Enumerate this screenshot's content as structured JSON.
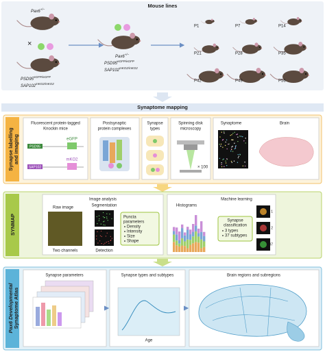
{
  "mouse_lines": {
    "title": "Mouse lines",
    "pax6": {
      "base": "Pax6",
      "sup": "+/−"
    },
    "cross": "×",
    "psd95": {
      "base": "PSD95",
      "sup": "eGFP/eGFP"
    },
    "sap102": {
      "base": "SAP102",
      "sup": "mKO2/mKO2"
    },
    "ages": [
      "P1",
      "P7",
      "P14",
      "P21",
      "P28",
      "P35",
      "P42",
      "P49",
      "P56"
    ]
  },
  "synaptome_mapping": {
    "title": "Synaptome mapping",
    "imaging": {
      "label": [
        "Synapse labelling",
        "and imaging"
      ],
      "knockin": [
        "Fluorescent protein-tagged",
        "Knockin mice"
      ],
      "psd95": "PSD95",
      "egfp": "eGFP",
      "sap102": "SAP102",
      "mko2": "mKO2",
      "complexes": [
        "Postsynaptic",
        "protein complexes"
      ],
      "types": [
        "Synapse",
        "types"
      ],
      "microscopy": [
        "Spinning disk",
        "microscopy"
      ],
      "magnification": "× 100",
      "synaptome": "Synaptome",
      "brain": "Brain"
    },
    "synmap": {
      "label": "SYNMAP",
      "image_analysis": "Image analysis",
      "raw_image": "Raw image",
      "segmentation": "Segmentation",
      "detection": "Detection",
      "two_channels": "Two channels",
      "puncta": [
        "Puncta",
        "parameters"
      ],
      "puncta_items": [
        "Density",
        "Intensity",
        "Size",
        "Shape"
      ],
      "machine_learning": "Machine learning",
      "histograms": "Histograms",
      "classification": [
        "Synapse",
        "classification"
      ],
      "classification_items": [
        "3 types",
        "37 subtypes"
      ],
      "examples": [
        "1",
        "2",
        "37"
      ]
    },
    "atlas": {
      "label": [
        "Pax6 Developmental",
        "Synaptome Atlas"
      ],
      "parameters": "Synapse parameters",
      "types_subtypes": "Synapse types and subtypes",
      "regions": "Brain regions and subregions",
      "age": "Age"
    }
  }
}
